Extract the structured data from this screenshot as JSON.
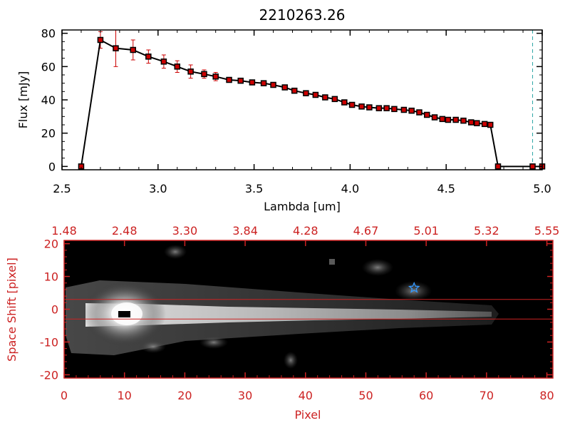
{
  "chart_data": [
    {
      "type": "line",
      "title": "2210263.26",
      "xlabel": "Lambda [um]",
      "ylabel": "Flux [mJy]",
      "xlim": [
        2.5,
        5.0
      ],
      "ylim": [
        -2,
        82
      ],
      "x_ticks": [
        "2.5",
        "3.0",
        "3.5",
        "4.0",
        "4.5",
        "5.0"
      ],
      "y_ticks": [
        "0",
        "20",
        "40",
        "60",
        "80"
      ],
      "grid": false,
      "colors": {
        "line": "#000000",
        "markers": "#cc0000",
        "errorbars": "#cc0000",
        "ref_line": "#2fa7a7"
      },
      "reference_line_x": 4.95,
      "series": [
        {
          "x": [
            2.6,
            2.7,
            2.78,
            2.87,
            2.95,
            3.03,
            3.1,
            3.17,
            3.24,
            3.3,
            3.37,
            3.43,
            3.49,
            3.55,
            3.6,
            3.66,
            3.71,
            3.77,
            3.82,
            3.87,
            3.92,
            3.97,
            4.01,
            4.06,
            4.1,
            4.15,
            4.19,
            4.23,
            4.28,
            4.32,
            4.36,
            4.4,
            4.44,
            4.48,
            4.51,
            4.55,
            4.59,
            4.63,
            4.66,
            4.7,
            4.73,
            4.77,
            4.95,
            5.0
          ],
          "values": [
            0,
            76,
            71,
            70,
            66,
            63,
            60,
            57,
            55.5,
            54,
            52,
            51.5,
            50.5,
            50,
            49,
            47.5,
            45.5,
            44,
            43,
            41.5,
            40.5,
            38.5,
            37,
            36,
            35.5,
            35,
            35,
            34.5,
            34,
            33.5,
            32.5,
            31,
            29.5,
            28.5,
            28,
            28,
            27.5,
            26.5,
            26,
            25.5,
            25,
            0,
            0,
            0
          ],
          "errors": [
            0,
            5,
            11,
            6,
            4,
            4,
            3.5,
            4,
            2.5,
            2.5,
            1.5,
            1,
            1,
            1,
            1,
            1,
            1,
            1,
            1,
            1,
            1,
            1,
            1,
            1,
            1,
            1,
            1,
            1,
            1,
            1,
            1,
            1,
            1,
            1,
            1,
            1,
            1,
            1,
            1,
            1,
            1,
            0,
            0,
            0
          ]
        }
      ]
    },
    {
      "type": "heatmap",
      "xlabel": "Pixel",
      "ylabel": "Space Shift [pixel]",
      "xlim": [
        0,
        81
      ],
      "ylim": [
        -21,
        21
      ],
      "x_ticks": [
        "0",
        "10",
        "20",
        "30",
        "40",
        "50",
        "60",
        "70",
        "80"
      ],
      "y_ticks": [
        "-20",
        "-10",
        "0",
        "10",
        "20"
      ],
      "top_ticks": [
        "1.48",
        "2.48",
        "3.30",
        "3.84",
        "4.28",
        "4.67",
        "5.01",
        "5.32",
        "5.55"
      ],
      "extraction_aperture": [
        -3,
        3
      ],
      "source_marker": {
        "x": 58,
        "y": 6.5,
        "symbol": "star"
      },
      "trace_peak_x": 10,
      "colors": {
        "axis": "#cc2222",
        "aperture": "#cc2222",
        "marker": "#3399ff",
        "background": "#000000"
      }
    }
  ]
}
